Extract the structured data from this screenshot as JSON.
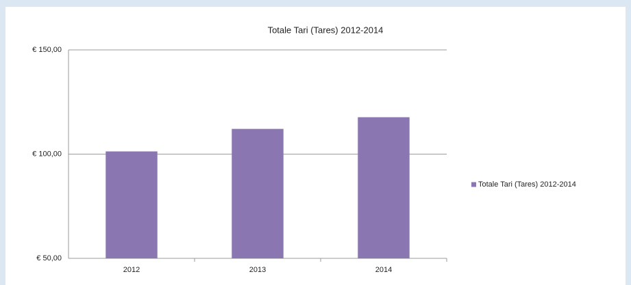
{
  "chart_data": {
    "type": "bar",
    "title": "Totale Tari (Tares) 2012-2014",
    "categories": [
      "2012",
      "2013",
      "2014"
    ],
    "series": [
      {
        "name": "Totale Tari (Tares) 2012-2014",
        "color": "#8a76b1",
        "values": [
          101.3,
          112.1,
          117.7
        ]
      }
    ],
    "ylim": [
      50,
      150
    ],
    "yticks": [
      {
        "value": 50,
        "label": "€ 50,00"
      },
      {
        "value": 100,
        "label": "€ 100,00"
      },
      {
        "value": 150,
        "label": "€ 150,00"
      }
    ],
    "grid": true,
    "legend": "right"
  }
}
